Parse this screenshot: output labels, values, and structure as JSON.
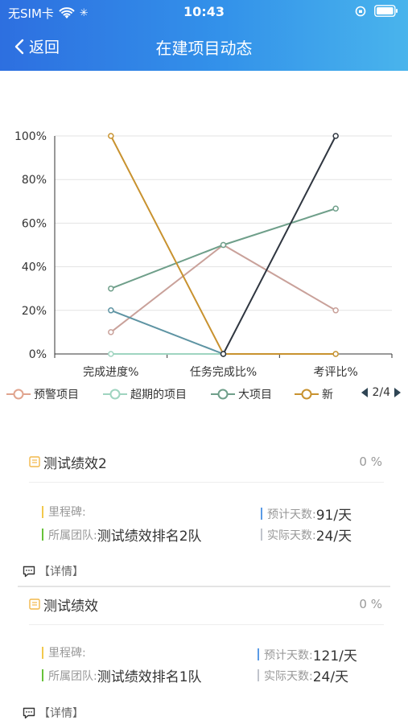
{
  "status_bar": {
    "carrier": "无SIM卡",
    "time": "10:43"
  },
  "nav": {
    "back_label": "返回",
    "title": "在建项目动态"
  },
  "chart_data": {
    "type": "line",
    "categories": [
      "完成进度%",
      "任务完成比%",
      "考评比%"
    ],
    "y_ticks": [
      "0%",
      "20%",
      "40%",
      "60%",
      "80%",
      "100%"
    ],
    "ylim": [
      0,
      100
    ],
    "series": [
      {
        "name": "预警项目",
        "color": "#c9a19a",
        "values": [
          10,
          50,
          20
        ]
      },
      {
        "name": "超期的项目",
        "color": "#9fd4c0",
        "values": [
          0,
          0,
          0
        ]
      },
      {
        "name": "大项目",
        "color": "#6f9f8a",
        "values": [
          30,
          50,
          66.7
        ]
      },
      {
        "name": "新",
        "color": "#c8922f",
        "values": [
          100,
          0,
          0
        ]
      },
      {
        "name": "",
        "color": "#5e94a3",
        "values": [
          20,
          0,
          null
        ]
      },
      {
        "name": "",
        "color": "#2f3640",
        "values": [
          null,
          0,
          100
        ]
      }
    ],
    "legend_page": "2/4",
    "grid": true
  },
  "projects": [
    {
      "title": "测试绩效2",
      "percent": "0 %",
      "milestone_label": "里程碑:",
      "milestone_value": "",
      "team_label": "所属团队:",
      "team_value": "测试绩效排名2队",
      "plan_label": "预计天数:",
      "plan_value": "91/天",
      "actual_label": "实际天数:",
      "actual_value": "24/天",
      "detail": "【详情】"
    },
    {
      "title": "测试绩效",
      "percent": "0 %",
      "milestone_label": "里程碑:",
      "milestone_value": "",
      "team_label": "所属团队:",
      "team_value": "测试绩效排名1队",
      "plan_label": "预计天数:",
      "plan_value": "121/天",
      "actual_label": "实际天数:",
      "actual_value": "24/天",
      "detail": "【详情】"
    }
  ],
  "colors": {
    "header_start": "#2d6fe0",
    "header_end": "#49b4ec",
    "bar_yellow": "#f2c94c",
    "bar_green": "#67c23a",
    "bar_blue": "#5b9be6",
    "bar_gray": "#c0c4cc"
  }
}
